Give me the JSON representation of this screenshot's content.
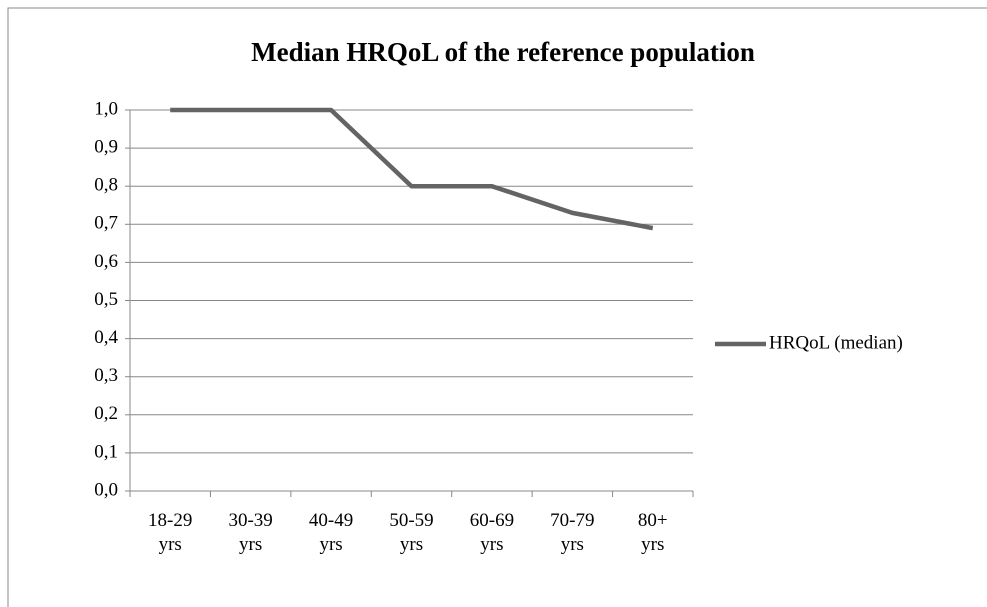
{
  "chart_data": {
    "type": "line",
    "title": "Median HRQoL of the reference population",
    "categories": [
      "18-29 yrs",
      "30-39 yrs",
      "40-49 yrs",
      "50-59 yrs",
      "60-69 yrs",
      "70-79 yrs",
      "80+ yrs"
    ],
    "series": [
      {
        "name": "HRQoL (median)",
        "color": "#646464",
        "values": [
          1.0,
          1.0,
          1.0,
          0.8,
          0.8,
          0.73,
          0.69
        ]
      }
    ],
    "ylim": [
      0,
      1
    ],
    "yticks": [
      {
        "value": 0,
        "label": "0,0"
      },
      {
        "value": 0.1,
        "label": "0,1"
      },
      {
        "value": 0.2,
        "label": "0,2"
      },
      {
        "value": 0.3,
        "label": "0,3"
      },
      {
        "value": 0.4,
        "label": "0,4"
      },
      {
        "value": 0.5,
        "label": "0,5"
      },
      {
        "value": 0.6,
        "label": "0,6"
      },
      {
        "value": 0.7,
        "label": "0,7"
      },
      {
        "value": 0.8,
        "label": "0,8"
      },
      {
        "value": 0.9,
        "label": "0,9"
      },
      {
        "value": 1,
        "label": "1,0"
      }
    ],
    "grid": true,
    "legend": "right"
  }
}
